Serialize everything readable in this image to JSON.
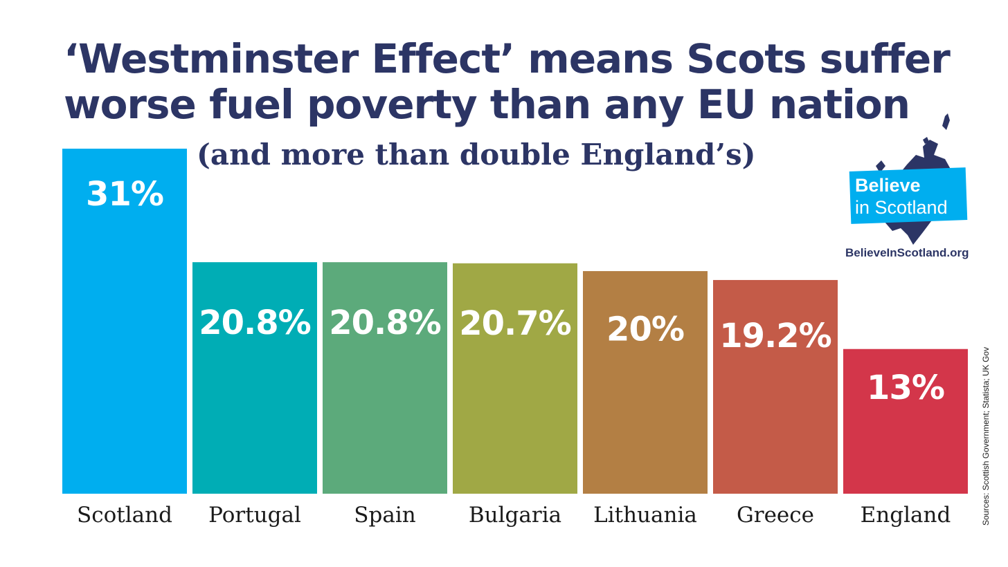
{
  "title_line1": "‘Westminster Effect’ means Scots suffer",
  "title_line2": "worse fuel poverty than any EU nation",
  "subtitle": "(and more than double England’s)",
  "logo": {
    "line1": "Believe",
    "line2": "in Scotland",
    "url": "BelieveInScotland.org",
    "map_icon": "scotland-map-icon",
    "map_color": "#2c3565",
    "box_color": "#00aeef"
  },
  "sources": "Sources: Scottish Government; Statista; UK Gov",
  "chart_data": {
    "type": "bar",
    "categories": [
      "Scotland",
      "Portugal",
      "Spain",
      "Bulgaria",
      "Lithuania",
      "Greece",
      "England"
    ],
    "values": [
      31,
      20.8,
      20.8,
      20.7,
      20,
      19.2,
      13
    ],
    "value_labels": [
      "31%",
      "20.8%",
      "20.8%",
      "20.7%",
      "20%",
      "19.2%",
      "13%"
    ],
    "colors": [
      "#00aeef",
      "#00adb5",
      "#5caa7b",
      "#a0a845",
      "#b37f44",
      "#c45b48",
      "#d3364a"
    ],
    "ylim": [
      0,
      31
    ],
    "grid": false,
    "xlabel": "",
    "ylabel": ""
  }
}
